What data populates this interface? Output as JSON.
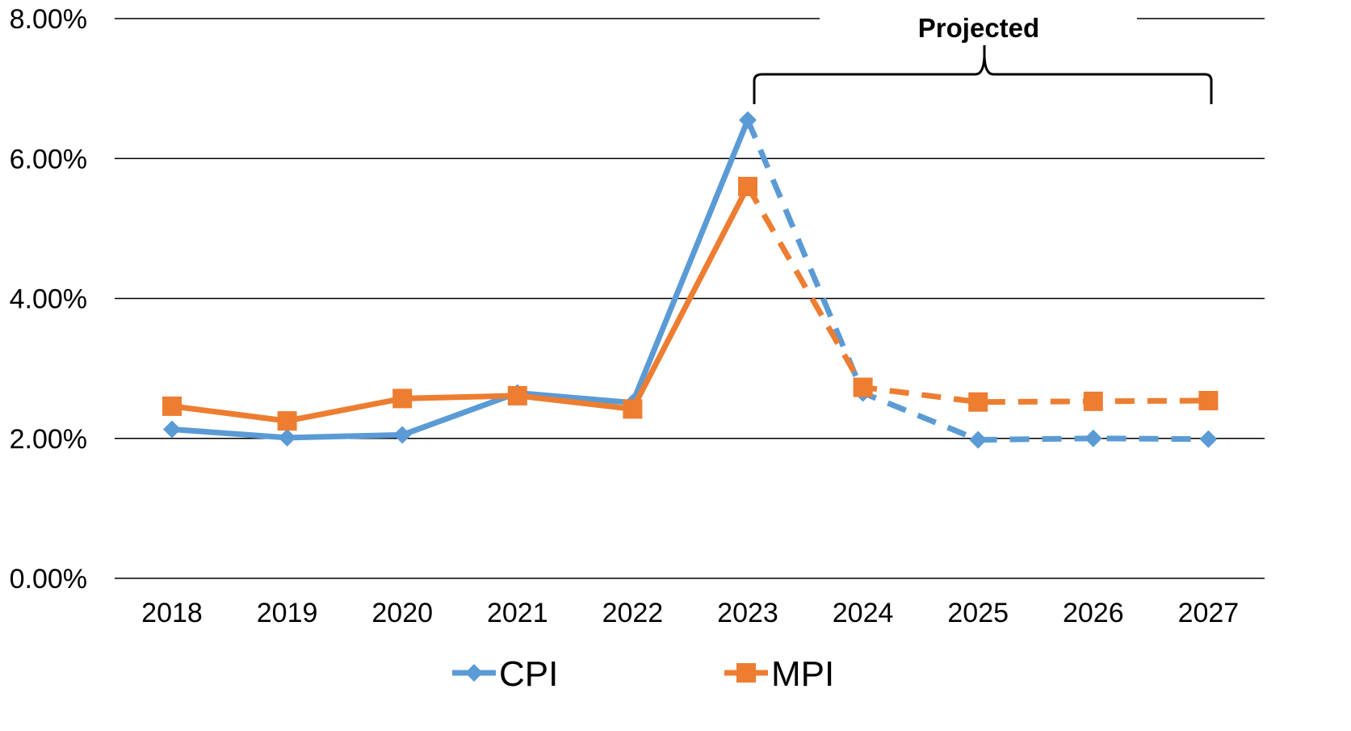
{
  "chart_data": {
    "type": "line",
    "x": [
      "2018",
      "2019",
      "2020",
      "2021",
      "2022",
      "2023",
      "2024",
      "2025",
      "2026",
      "2027"
    ],
    "ylim": [
      0,
      0.08
    ],
    "yticks": [
      0,
      0.02,
      0.04,
      0.06,
      0.08
    ],
    "ytick_labels": [
      "0.00%",
      "2.00%",
      "4.00%",
      "6.00%",
      "8.00%"
    ],
    "grid": true,
    "legend_position": "bottom",
    "projected_from_index": 5,
    "annotation": "Projected",
    "series": [
      {
        "name": "CPI",
        "color": "#5B9BD5",
        "marker": "diamond",
        "values": [
          0.0213,
          0.0201,
          0.0205,
          0.0265,
          0.0251,
          0.0655,
          0.0265,
          0.0198,
          0.02,
          0.0199
        ]
      },
      {
        "name": "MPI",
        "color": "#ED7D31",
        "marker": "square",
        "values": [
          0.0246,
          0.0225,
          0.0257,
          0.0261,
          0.0242,
          0.056,
          0.0273,
          0.0252,
          0.0253,
          0.0254
        ]
      }
    ]
  }
}
